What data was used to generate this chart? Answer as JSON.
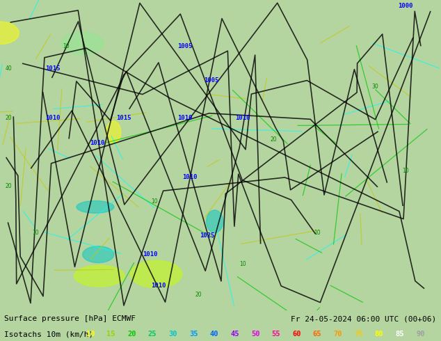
{
  "title_line1": "Surface pressure [hPa] ECMWF",
  "title_line2": "Fr 24-05-2024 06:00 UTC (00+06)",
  "legend_label": "Isotachs 10m (km/h)",
  "legend_values": [
    10,
    15,
    20,
    25,
    30,
    35,
    40,
    45,
    50,
    55,
    60,
    65,
    70,
    75,
    80,
    85,
    90
  ],
  "legend_colors": [
    "#ffff00",
    "#c8ff00",
    "#00ff00",
    "#00c800",
    "#00c8c8",
    "#0096ff",
    "#0000ff",
    "#9600ff",
    "#ff00ff",
    "#ff0096",
    "#ff0000",
    "#ff6400",
    "#ff9600",
    "#ffc800",
    "#ffff00",
    "#ffffff",
    "#c8c8c8"
  ],
  "bg_color": "#b4d4a0",
  "map_bg": "#90c878",
  "ocean_color": "#a0c8e0",
  "bottom_bar_color": "#d8d8d8",
  "text_color": "#000000",
  "figsize": [
    6.34,
    4.9
  ],
  "dpi": 100
}
